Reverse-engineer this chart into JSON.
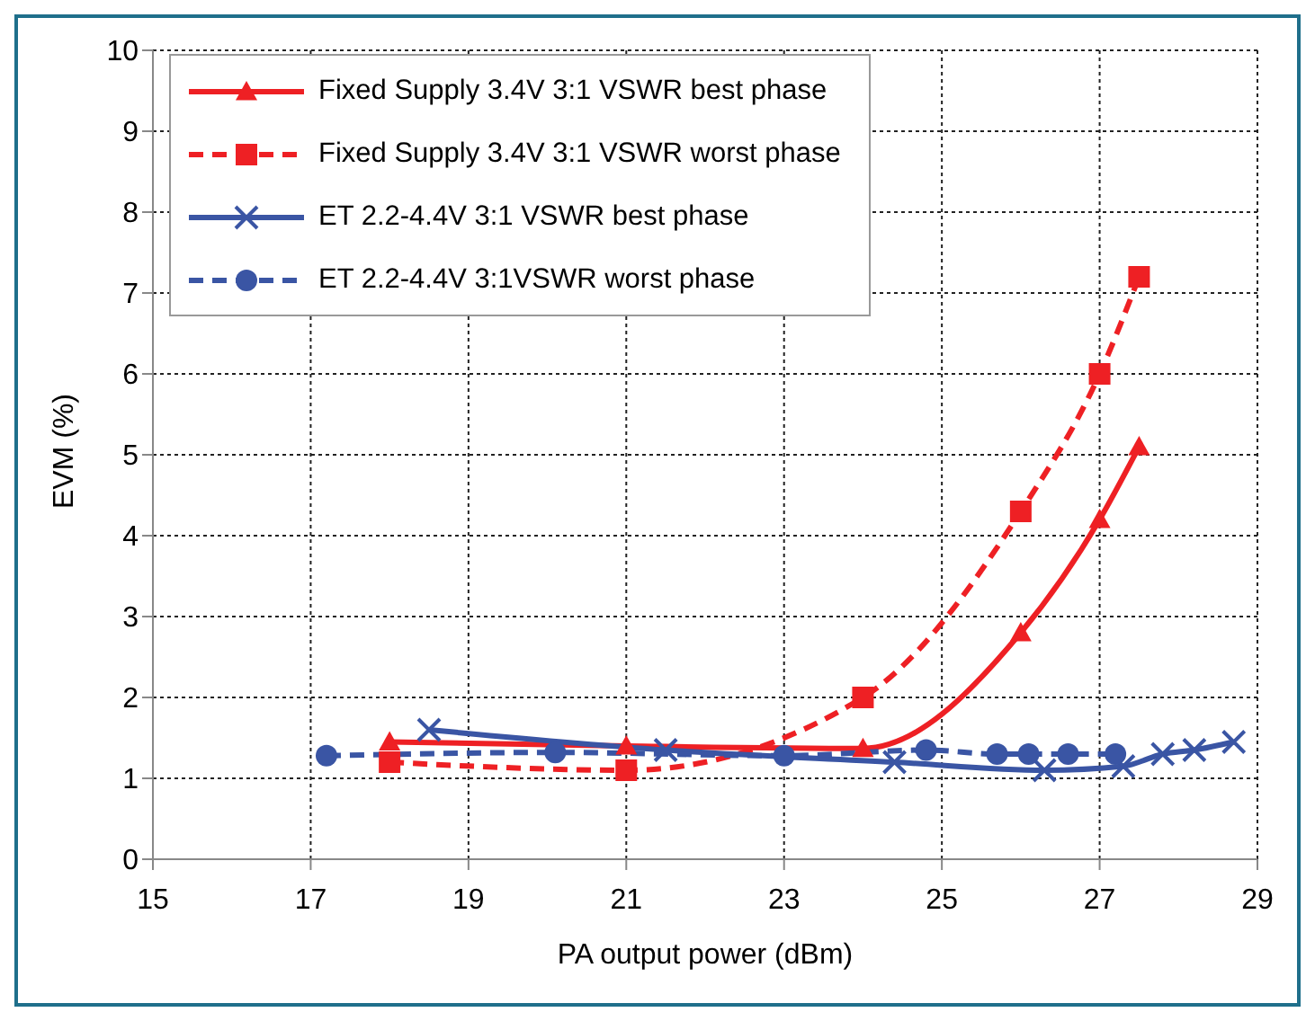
{
  "chart_data": {
    "type": "line",
    "xlabel": "PA output power (dBm)",
    "ylabel": "EVM (%)",
    "xlim": [
      15,
      29
    ],
    "xticks": [
      15,
      17,
      19,
      21,
      23,
      25,
      27,
      29
    ],
    "ylim": [
      0,
      10
    ],
    "yticks": [
      0,
      1,
      2,
      3,
      4,
      5,
      6,
      7,
      8,
      9,
      10
    ],
    "grid": true,
    "legend": "top left",
    "series": [
      {
        "name": "Fixed Supply 3.4V 3:1 VSWR best phase",
        "color": "#ee2024",
        "marker": "triangle",
        "line_style": "solid",
        "x": [
          18,
          21,
          24,
          26,
          27,
          27.5
        ],
        "values": [
          1.45,
          1.4,
          1.37,
          2.8,
          4.2,
          5.1
        ]
      },
      {
        "name": "Fixed Supply 3.4V 3:1 VSWR worst phase",
        "color": "#ee2024",
        "marker": "square",
        "line_style": "dashed",
        "x": [
          18,
          21,
          24,
          26,
          27,
          27.5
        ],
        "values": [
          1.2,
          1.1,
          2.0,
          4.3,
          6.0,
          7.2
        ]
      },
      {
        "name": "ET 2.2-4.4V 3:1 VSWR best phase",
        "color": "#3a55a4",
        "marker": "cross",
        "line_style": "solid",
        "x": [
          18.5,
          21.5,
          24.4,
          26.3,
          27.3,
          27.8,
          28.2,
          28.7
        ],
        "values": [
          1.6,
          1.35,
          1.2,
          1.1,
          1.15,
          1.3,
          1.35,
          1.45
        ]
      },
      {
        "name": "ET 2.2-4.4V 3:1VSWR worst phase",
        "color": "#3a55a4",
        "marker": "circle",
        "line_style": "dashed",
        "x": [
          17.2,
          20.1,
          23,
          24.8,
          25.7,
          26.1,
          26.6,
          27.2
        ],
        "values": [
          1.28,
          1.32,
          1.28,
          1.35,
          1.3,
          1.3,
          1.3,
          1.3
        ]
      }
    ]
  }
}
